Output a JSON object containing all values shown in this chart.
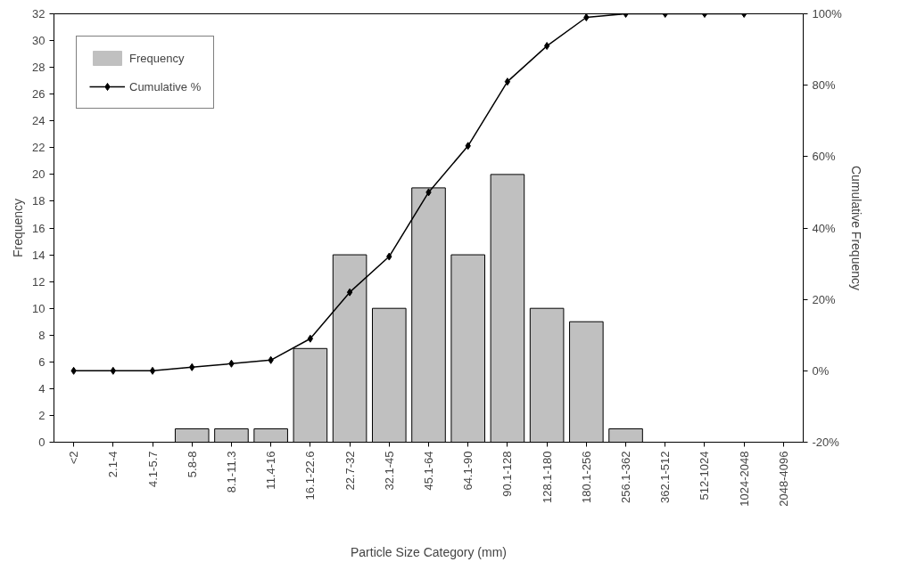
{
  "chart_data": {
    "type": "bar",
    "xlabel": "Particle Size Category (mm)",
    "ylabel": "Frequency",
    "y2label": "Cumulative Frequency",
    "categories": [
      "<2",
      "2.1-4",
      "4.1-5.7",
      "5.8-8",
      "8.1-11.3",
      "11.4-16",
      "16.1-22.6",
      "22.7-32",
      "32.1-45",
      "45.1-64",
      "64.1-90",
      "90.1-128",
      "128.1-180",
      "180.1-256",
      "256.1-362",
      "362.1-512",
      "512-1024",
      "1024-2048",
      "2048-4096"
    ],
    "series": [
      {
        "name": "Frequency",
        "color": "#c0c0c0",
        "values": [
          0,
          0,
          0,
          1,
          1,
          1,
          7,
          14,
          10,
          19,
          14,
          20,
          10,
          9,
          1,
          0,
          0,
          0,
          0
        ]
      },
      {
        "name": "Cumulative %",
        "type": "line",
        "axis": "y2",
        "color": "#000000",
        "marker": "diamond",
        "values": [
          0,
          0,
          0,
          1,
          2,
          3,
          9,
          22,
          32,
          50,
          63,
          81,
          91,
          99,
          100,
          100,
          100,
          100,
          null
        ]
      }
    ],
    "ylim": [
      0,
      32
    ],
    "yticks": [
      0,
      2,
      4,
      6,
      8,
      10,
      12,
      14,
      16,
      18,
      20,
      22,
      24,
      26,
      28,
      30,
      32
    ],
    "y2lim": [
      -20,
      100
    ],
    "y2ticks": [
      {
        "value": -20,
        "label": "-20%"
      },
      {
        "value": 0,
        "label": "0%"
      },
      {
        "value": 20,
        "label": "20%"
      },
      {
        "value": 40,
        "label": "40%"
      },
      {
        "value": 60,
        "label": "60%"
      },
      {
        "value": 80,
        "label": "80%"
      },
      {
        "value": 100,
        "label": "100%"
      }
    ],
    "grid": false,
    "legend": "top left"
  }
}
